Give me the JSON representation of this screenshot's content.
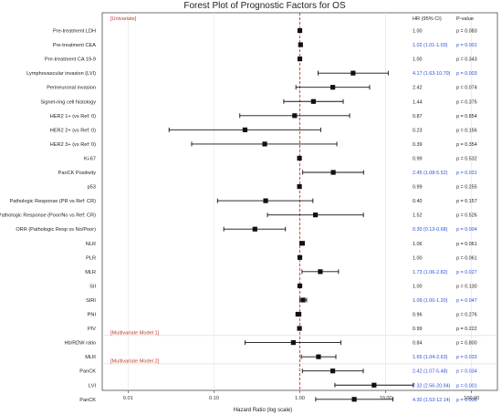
{
  "chart_data": {
    "type": "forest",
    "title": "Forest Plot of Prognostic Factors for OS",
    "xlabel": "Hazard Ratio (log scale)",
    "xscale": "log",
    "xlim": [
      0.005,
      200
    ],
    "xticks": [
      "0.01",
      "0.10",
      "1.00",
      "10.00",
      "100.00"
    ],
    "reference_line": 1.0,
    "column_headers": {
      "hr": "HR (95% CI)",
      "p": "P-value"
    },
    "sections": [
      {
        "label": "[Univariate]",
        "before_row": 0
      },
      {
        "label": "[Multivariate Model 1]",
        "before_row": 22
      },
      {
        "label": "[Multivariate Model 2]",
        "before_row": 24
      }
    ],
    "significant_color": "#2b4fd8",
    "rows": [
      {
        "name": "Pre-treatment LDH",
        "hr": 1.0,
        "lo": 1.0,
        "hi": 1.0,
        "hr_text": "1.00",
        "p_text": "p = 0.083",
        "sig": false
      },
      {
        "name": "Pre-treatment CEA",
        "hr": 1.02,
        "lo": 1.01,
        "hi": 1.03,
        "hr_text": "1.02 (1.01-1.03)",
        "p_text": "p = 0.001",
        "sig": true
      },
      {
        "name": "Pre-treatment CA 19-9",
        "hr": 1.0,
        "lo": 1.0,
        "hi": 1.0,
        "hr_text": "1.00",
        "p_text": "p = 0.343",
        "sig": false
      },
      {
        "name": "Lymphovascular invasion (LVI)",
        "hr": 4.17,
        "lo": 1.63,
        "hi": 10.7,
        "hr_text": "4.17 (1.63-10.70)",
        "p_text": "p = 0.003",
        "sig": true
      },
      {
        "name": "Perineuronal invasion",
        "hr": 2.42,
        "lo": 0.9,
        "hi": 6.5,
        "hr_text": "2.42",
        "p_text": "p = 0.074",
        "sig": false
      },
      {
        "name": "Signet-ring cell histology",
        "hr": 1.44,
        "lo": 0.65,
        "hi": 3.2,
        "hr_text": "1.44",
        "p_text": "p = 0.375",
        "sig": false
      },
      {
        "name": "HER2 1+ (vs Ref: 0)",
        "hr": 0.87,
        "lo": 0.2,
        "hi": 3.8,
        "hr_text": "0.87",
        "p_text": "p = 0.854",
        "sig": false
      },
      {
        "name": "HER2 2+ (vs Ref: 0)",
        "hr": 0.23,
        "lo": 0.03,
        "hi": 1.75,
        "hr_text": "0.23",
        "p_text": "p = 0.156",
        "sig": false
      },
      {
        "name": "HER2 3+ (vs Ref: 0)",
        "hr": 0.39,
        "lo": 0.055,
        "hi": 2.7,
        "hr_text": "0.39",
        "p_text": "p = 0.354",
        "sig": false
      },
      {
        "name": "Ki-67",
        "hr": 0.99,
        "lo": 0.97,
        "hi": 1.01,
        "hr_text": "0.99",
        "p_text": "p = 0.532",
        "sig": false
      },
      {
        "name": "PanCK Positivity",
        "hr": 2.45,
        "lo": 1.08,
        "hi": 5.52,
        "hr_text": "2.45 (1.08-5.52)",
        "p_text": "p = 0.031",
        "sig": true
      },
      {
        "name": "p53",
        "hr": 0.99,
        "lo": 0.97,
        "hi": 1.01,
        "hr_text": "0.99",
        "p_text": "p = 0.255",
        "sig": false
      },
      {
        "name": "Pathologic Response (PR vs Ref: CR)",
        "hr": 0.4,
        "lo": 0.11,
        "hi": 1.42,
        "hr_text": "0.40",
        "p_text": "p = 0.157",
        "sig": false
      },
      {
        "name": "Pathologic Response (Poor/No vs Ref: CR)",
        "hr": 1.52,
        "lo": 0.42,
        "hi": 5.5,
        "hr_text": "1.52",
        "p_text": "p = 0.526",
        "sig": false
      },
      {
        "name": "ORR (Pathologic Resp vs No/Poor)",
        "hr": 0.3,
        "lo": 0.13,
        "hi": 0.68,
        "hr_text": "0.30 (0.13-0.68)",
        "p_text": "p = 0.004",
        "sig": true
      },
      {
        "name": "NLR",
        "hr": 1.06,
        "lo": 1.0,
        "hi": 1.13,
        "hr_text": "1.06",
        "p_text": "p = 0.061",
        "sig": false
      },
      {
        "name": "PLR",
        "hr": 1.0,
        "lo": 1.0,
        "hi": 1.0,
        "hr_text": "1.00",
        "p_text": "p = 0.061",
        "sig": false
      },
      {
        "name": "MLR",
        "hr": 1.73,
        "lo": 1.06,
        "hi": 2.82,
        "hr_text": "1.73 (1.06-2.82)",
        "p_text": "p = 0.027",
        "sig": true
      },
      {
        "name": "SII",
        "hr": 1.0,
        "lo": 1.0,
        "hi": 1.0,
        "hr_text": "1.00",
        "p_text": "p = 0.130",
        "sig": false
      },
      {
        "name": "SIRI",
        "hr": 1.09,
        "lo": 1.0,
        "hi": 1.2,
        "hr_text": "1.09 (1.00-1.20)",
        "p_text": "p = 0.047",
        "sig": true
      },
      {
        "name": "PNI",
        "hr": 0.96,
        "lo": 0.9,
        "hi": 1.03,
        "hr_text": "0.96",
        "p_text": "p = 0.276",
        "sig": false
      },
      {
        "name": "PIV",
        "hr": 0.99,
        "lo": 0.97,
        "hi": 1.01,
        "hr_text": "0.99",
        "p_text": "p = 0.222",
        "sig": false
      },
      {
        "name": "Hb/RDW ratio",
        "hr": 0.84,
        "lo": 0.23,
        "hi": 3.0,
        "hr_text": "0.84",
        "p_text": "p = 0.800",
        "sig": false
      },
      {
        "name": "MLR",
        "hr": 1.65,
        "lo": 1.04,
        "hi": 2.63,
        "hr_text": "1.65 (1.04-2.63)",
        "p_text": "p = 0.033",
        "sig": true
      },
      {
        "name": "PanCK",
        "hr": 2.42,
        "lo": 1.07,
        "hi": 5.48,
        "hr_text": "2.42 (1.07-5.48)",
        "p_text": "p = 0.034",
        "sig": true
      },
      {
        "name": "LVI",
        "hr": 7.32,
        "lo": 2.56,
        "hi": 20.94,
        "hr_text": "7.32 (2.56-20.94)",
        "p_text": "p = 0.001",
        "sig": true
      },
      {
        "name": "PanCK",
        "hr": 4.3,
        "lo": 1.53,
        "hi": 12.14,
        "hr_text": "4.30 (1.53-12.14)",
        "p_text": "p = 0.006",
        "sig": true
      }
    ]
  }
}
